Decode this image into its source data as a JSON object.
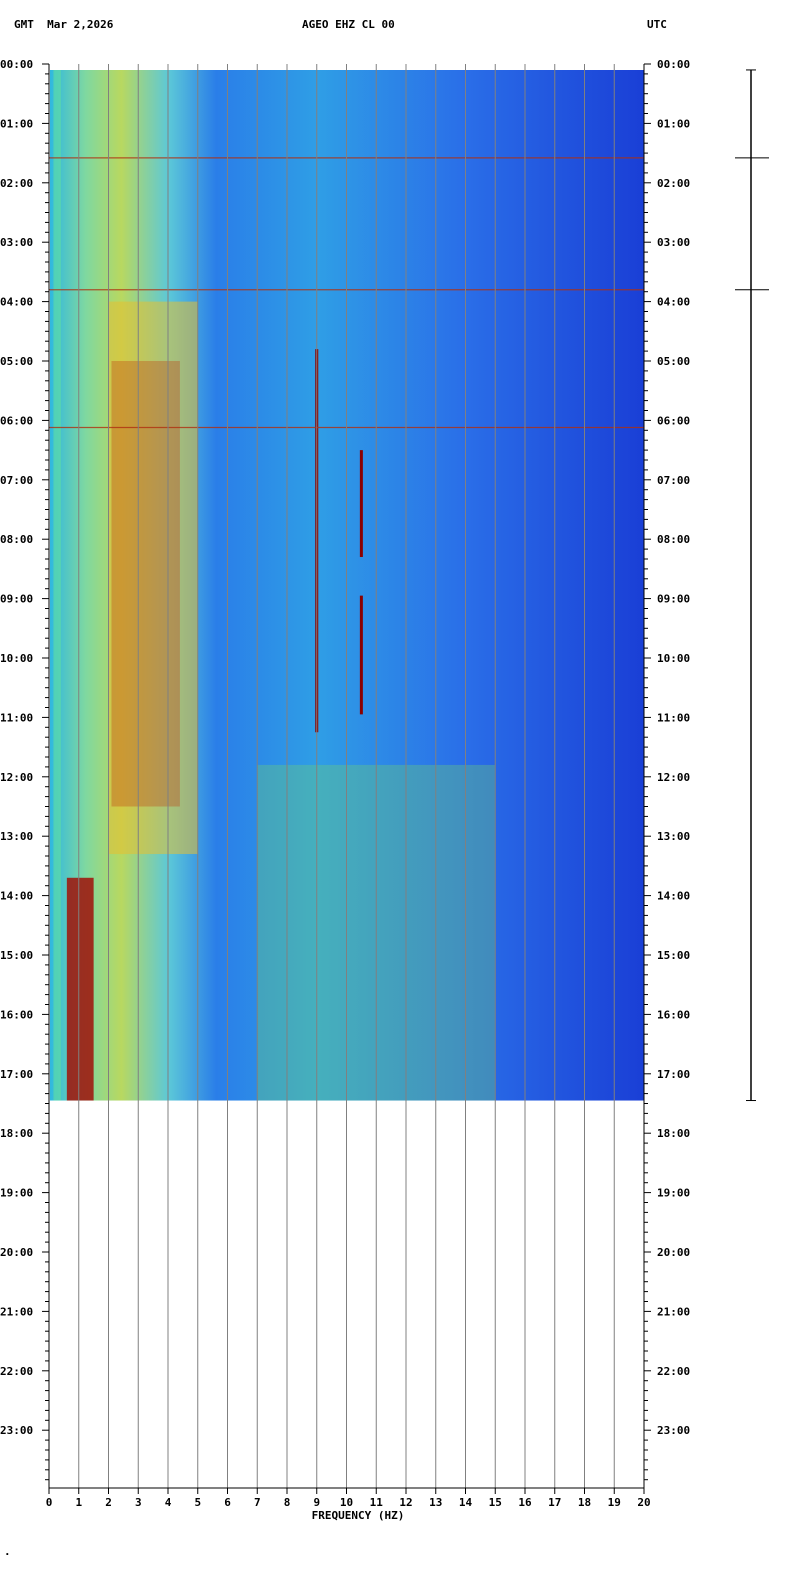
{
  "header": {
    "left": "GMT  Mar 2,2026",
    "center": "AGEO EHZ CL 00",
    "right": "UTC"
  },
  "chart_data": {
    "type": "heatmap",
    "title": "AGEO EHZ CL 00",
    "date": "Mar 2,2026",
    "left_timezone": "GMT",
    "right_timezone": "UTC",
    "xlabel": "FREQUENCY (HZ)",
    "xlim": [
      0,
      20
    ],
    "x_ticks": [
      "0",
      "1",
      "2",
      "3",
      "4",
      "5",
      "6",
      "7",
      "8",
      "9",
      "10",
      "11",
      "12",
      "13",
      "14",
      "15",
      "16",
      "17",
      "18",
      "19",
      "20"
    ],
    "y_ticks": [
      "00:00",
      "01:00",
      "02:00",
      "03:00",
      "04:00",
      "05:00",
      "06:00",
      "07:00",
      "08:00",
      "09:00",
      "10:00",
      "11:00",
      "12:00",
      "13:00",
      "14:00",
      "15:00",
      "16:00",
      "17:00",
      "18:00",
      "19:00",
      "20:00",
      "21:00",
      "22:00",
      "23:00"
    ],
    "data_end_hour": 17.45,
    "colors": {
      "low": "#1a3fd6",
      "mid": "#2fb8e0",
      "high_mid": "#e8e23a",
      "high": "#8b0000",
      "grid": "#808080"
    },
    "features": {
      "vertical_lines_hz": [
        {
          "hz": 9.0,
          "start_hour": 4.8,
          "end_hour": 11.25
        },
        {
          "hz": 10.5,
          "start_hour": 6.5,
          "end_hour": 8.3
        },
        {
          "hz": 10.5,
          "start_hour": 8.95,
          "end_hour": 10.95
        }
      ],
      "horizontal_lines_hour": [
        1.58,
        3.8,
        6.12
      ]
    },
    "trace_spikes_hour": [
      1.58,
      3.8
    ]
  },
  "footer": {
    "mark": "·"
  }
}
